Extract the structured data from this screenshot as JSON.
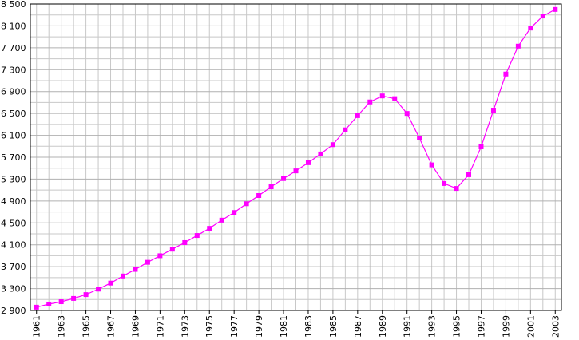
{
  "chart_data": {
    "type": "line",
    "color": "#ff00ff",
    "x": [
      1961,
      1962,
      1963,
      1964,
      1965,
      1966,
      1967,
      1968,
      1969,
      1970,
      1971,
      1972,
      1973,
      1974,
      1975,
      1976,
      1977,
      1978,
      1979,
      1980,
      1981,
      1982,
      1983,
      1984,
      1985,
      1986,
      1987,
      1988,
      1989,
      1990,
      1991,
      1992,
      1993,
      1994,
      1995,
      1996,
      1997,
      1998,
      1999,
      2000,
      2001,
      2002,
      2003
    ],
    "values": [
      2960,
      3017,
      3060,
      3120,
      3190,
      3290,
      3400,
      3530,
      3650,
      3780,
      3900,
      4020,
      4140,
      4270,
      4400,
      4550,
      4690,
      4850,
      5000,
      5160,
      5310,
      5450,
      5600,
      5760,
      5930,
      6200,
      6460,
      6710,
      6820,
      6770,
      6500,
      6050,
      5560,
      5220,
      5130,
      5380,
      5890,
      6560,
      7220,
      7730,
      8060,
      8280,
      8400
    ],
    "xlim": [
      1960.5,
      2003.5
    ],
    "xticks": [
      1961,
      1963,
      1965,
      1967,
      1969,
      1971,
      1973,
      1975,
      1977,
      1979,
      1981,
      1983,
      1985,
      1987,
      1989,
      1991,
      1993,
      1995,
      1997,
      1999,
      2001,
      2003
    ],
    "ylim": [
      2900,
      8500
    ],
    "yticks": [
      {
        "value": 2900,
        "label": "2 900"
      },
      {
        "value": 3300,
        "label": "3 300"
      },
      {
        "value": 3700,
        "label": "3 700"
      },
      {
        "value": 4100,
        "label": "4 100"
      },
      {
        "value": 4500,
        "label": "4 500"
      },
      {
        "value": 4900,
        "label": "4 900"
      },
      {
        "value": 5300,
        "label": "5 300"
      },
      {
        "value": 5700,
        "label": "5 700"
      },
      {
        "value": 6100,
        "label": "6 100"
      },
      {
        "value": 6500,
        "label": "6 500"
      },
      {
        "value": 6900,
        "label": "6 900"
      },
      {
        "value": 7300,
        "label": "7 300"
      },
      {
        "value": 7700,
        "label": "7 700"
      },
      {
        "value": 8100,
        "label": "8 100"
      },
      {
        "value": 8500,
        "label": "8 500"
      }
    ],
    "grid": true
  }
}
